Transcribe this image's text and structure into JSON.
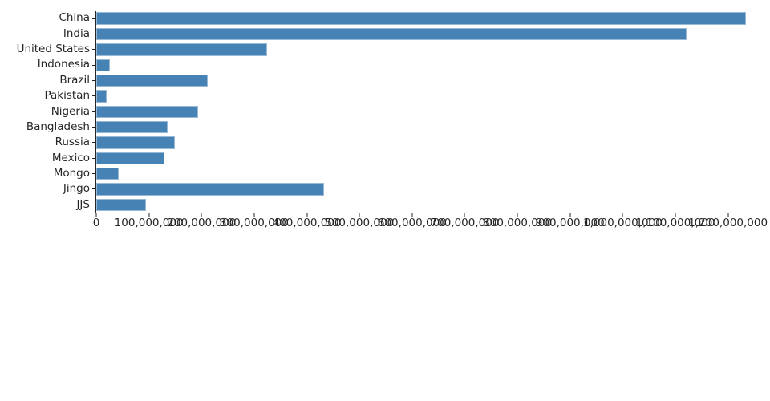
{
  "chart_data": {
    "type": "bar",
    "orientation": "horizontal",
    "categories": [
      "China",
      "India",
      "United States",
      "Indonesia",
      "Brazil",
      "Pakistan",
      "Nigeria",
      "Bangladesh",
      "Russia",
      "Mexico",
      "Mongo",
      "Jingo",
      "JJS"
    ],
    "values": [
      1234000000,
      1122000000,
      324000000,
      26000000,
      212000000,
      20000000,
      193000000,
      136000000,
      150000000,
      129000000,
      43000000,
      432000000,
      94000000
    ],
    "xlim": [
      0,
      1234000000
    ],
    "x_ticks": [
      0,
      100000000,
      200000000,
      300000000,
      400000000,
      500000000,
      600000000,
      700000000,
      800000000,
      900000000,
      1000000000,
      1100000000,
      1200000000
    ],
    "x_tick_labels": [
      "0",
      "100,000,000",
      "200,000,000",
      "300,000,000",
      "400,000,000",
      "500,000,000",
      "600,000,000",
      "700,000,000",
      "800,000,000",
      "900,000,000",
      "1,000,000,000",
      "1,100,000,000",
      "1,200,000,000"
    ],
    "grid": false,
    "legend": false,
    "colors": {
      "bar": "#4682b4",
      "axis": "#262626",
      "text": "#262626",
      "background": "#ffffff"
    }
  }
}
